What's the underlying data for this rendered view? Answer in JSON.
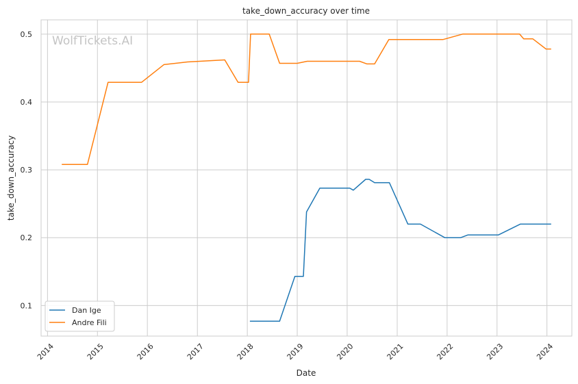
{
  "chart_data": {
    "type": "line",
    "title": "take_down_accuracy over time",
    "xlabel": "Date",
    "ylabel": "take_down_accuracy",
    "watermark": "WolfTickets.AI",
    "xlim": [
      "2013-11-15",
      "2024-07-01"
    ],
    "ylim": [
      0.055,
      0.521
    ],
    "grid": true,
    "legend_position": "lower-left",
    "x_ticks": [
      "2014",
      "2015",
      "2016",
      "2017",
      "2018",
      "2019",
      "2020",
      "2021",
      "2022",
      "2023",
      "2024"
    ],
    "y_ticks": [
      0.1,
      0.2,
      0.3,
      0.4,
      0.5
    ],
    "y_tick_labels": [
      "0.1",
      "0.2",
      "0.3",
      "0.4",
      "0.5"
    ],
    "series": [
      {
        "name": "Dan Ige",
        "color": "#1f77b4",
        "points": [
          [
            "2018-01-20",
            0.077
          ],
          [
            "2018-08-25",
            0.077
          ],
          [
            "2018-12-15",
            0.143
          ],
          [
            "2019-02-15",
            0.143
          ],
          [
            "2019-03-10",
            0.238
          ],
          [
            "2019-06-15",
            0.273
          ],
          [
            "2020-01-20",
            0.273
          ],
          [
            "2020-02-15",
            0.27
          ],
          [
            "2020-05-15",
            0.286
          ],
          [
            "2020-06-10",
            0.286
          ],
          [
            "2020-07-20",
            0.281
          ],
          [
            "2020-11-05",
            0.281
          ],
          [
            "2021-03-20",
            0.22
          ],
          [
            "2021-06-20",
            0.22
          ],
          [
            "2021-12-15",
            0.2
          ],
          [
            "2022-04-10",
            0.2
          ],
          [
            "2022-06-01",
            0.204
          ],
          [
            "2023-01-10",
            0.204
          ],
          [
            "2023-06-20",
            0.22
          ],
          [
            "2024-02-01",
            0.22
          ]
        ]
      },
      {
        "name": "Andre Fili",
        "color": "#ff7f0e",
        "points": [
          [
            "2014-04-15",
            0.308
          ],
          [
            "2014-10-20",
            0.308
          ],
          [
            "2015-03-20",
            0.429
          ],
          [
            "2015-11-20",
            0.429
          ],
          [
            "2016-05-01",
            0.455
          ],
          [
            "2016-10-20",
            0.459
          ],
          [
            "2017-07-20",
            0.462
          ],
          [
            "2017-10-25",
            0.429
          ],
          [
            "2018-01-10",
            0.429
          ],
          [
            "2018-01-25",
            0.5
          ],
          [
            "2018-06-10",
            0.5
          ],
          [
            "2018-08-25",
            0.457
          ],
          [
            "2019-01-01",
            0.457
          ],
          [
            "2019-03-15",
            0.46
          ],
          [
            "2020-04-01",
            0.46
          ],
          [
            "2020-05-25",
            0.456
          ],
          [
            "2020-07-20",
            0.456
          ],
          [
            "2020-11-01",
            0.492
          ],
          [
            "2021-12-01",
            0.492
          ],
          [
            "2022-04-25",
            0.5
          ],
          [
            "2023-06-15",
            0.5
          ],
          [
            "2023-07-15",
            0.493
          ],
          [
            "2023-09-20",
            0.493
          ],
          [
            "2023-12-25",
            0.478
          ],
          [
            "2024-02-01",
            0.478
          ]
        ]
      }
    ]
  }
}
